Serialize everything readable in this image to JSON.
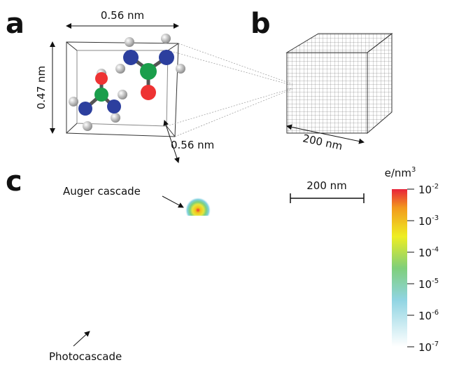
{
  "panels": {
    "a": "a",
    "b": "b",
    "c": "c"
  },
  "panel_a": {
    "width": "0.56 nm",
    "height": "0.47 nm",
    "depth": "0.56 nm"
  },
  "panel_b": {
    "size": "200 nm"
  },
  "panel_c": {
    "auger": "Auger cascade",
    "photo": "Photocascade",
    "scale": "200 nm",
    "colorbar": {
      "unit": {
        "text": "e/nm",
        "sup": "3"
      },
      "ticks": [
        {
          "base": "10",
          "exp": "-2"
        },
        {
          "base": "10",
          "exp": "-3"
        },
        {
          "base": "10",
          "exp": "-4"
        },
        {
          "base": "10",
          "exp": "-5"
        },
        {
          "base": "10",
          "exp": "-6"
        },
        {
          "base": "10",
          "exp": "-7"
        }
      ]
    }
  }
}
